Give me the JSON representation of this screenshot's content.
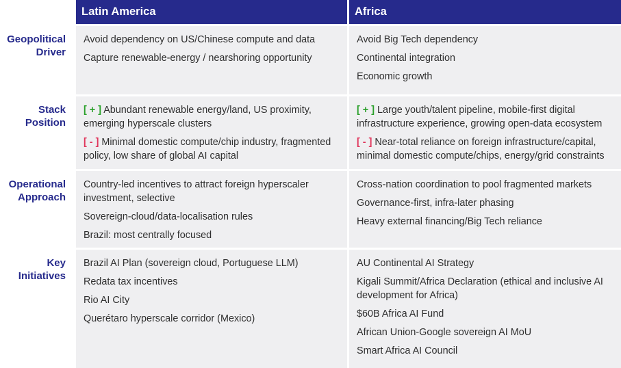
{
  "columns": [
    "Latin America",
    "Africa"
  ],
  "rows": [
    {
      "label": "Geopolitical Driver",
      "latam": [
        {
          "text": "Avoid dependency on US/Chinese compute and data"
        },
        {
          "text": "Capture renewable-energy / nearshoring opportunity"
        }
      ],
      "africa": [
        {
          "text": "Avoid Big Tech dependency"
        },
        {
          "text": "Continental integration"
        },
        {
          "text": "Economic growth"
        }
      ]
    },
    {
      "label": "Stack Position",
      "latam": [
        {
          "marker": "[ + ]",
          "text": " Abundant renewable energy/land, US proximity, emerging hyperscale clusters"
        },
        {
          "marker": "[ - ]",
          "text": " Minimal domestic compute/chip industry, fragmented policy, low share of global AI capital"
        }
      ],
      "africa": [
        {
          "marker": "[ + ]",
          "text": " Large youth/talent pipeline, mobile-first digital infrastructure experience, growing open-data ecosystem"
        },
        {
          "marker": "[ - ]",
          "text": " Near-total reliance on foreign infrastructure/capital, minimal domestic compute/chips, energy/grid constraints"
        }
      ]
    },
    {
      "label": "Operational Approach",
      "latam": [
        {
          "text": "Country-led incentives to attract foreign hyperscaler investment, selective"
        },
        {
          "text": "Sovereign-cloud/data-localisation rules"
        },
        {
          "text": "Brazil: most centrally focused"
        }
      ],
      "africa": [
        {
          "text": "Cross-nation coordination to pool fragmented markets"
        },
        {
          "text": "Governance-first, infra-later phasing"
        },
        {
          "text": "Heavy external financing/Big Tech reliance"
        }
      ]
    },
    {
      "label": "Key Initiatives",
      "latam": [
        {
          "text": "Brazil AI Plan (sovereign cloud, Portuguese LLM)"
        },
        {
          "text": "Redata tax incentives"
        },
        {
          "text": "Rio AI City"
        },
        {
          "text": "Querétaro hyperscale corridor (Mexico)"
        }
      ],
      "africa": [
        {
          "text": "AU Continental AI Strategy"
        },
        {
          "text": "Kigali Summit/Africa Declaration (ethical and inclusive AI development for Africa)"
        },
        {
          "text": "$60B Africa AI Fund"
        },
        {
          "text": "African Union-Google sovereign AI MoU"
        },
        {
          "text": "Smart Africa AI Council"
        }
      ]
    }
  ]
}
